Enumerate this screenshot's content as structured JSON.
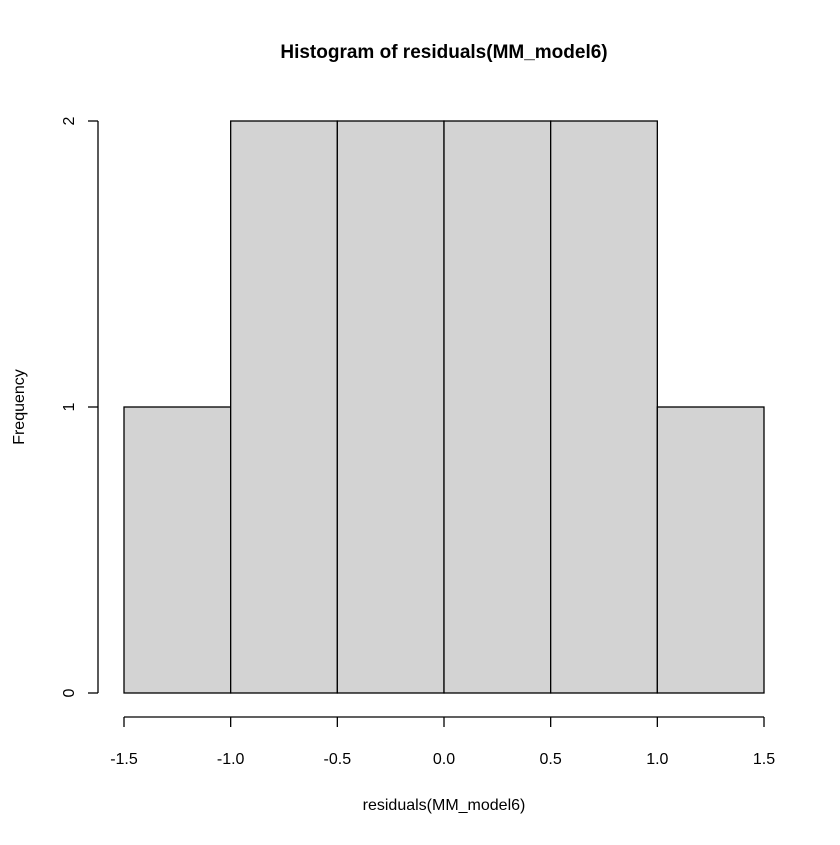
{
  "chart_data": {
    "type": "bar",
    "title": "Histogram of residuals(MM_model6)",
    "xlabel": "residuals(MM_model6)",
    "ylabel": "Frequency",
    "bins": [
      {
        "from": -1.5,
        "to": -1.0,
        "count": 1
      },
      {
        "from": -1.0,
        "to": -0.5,
        "count": 2
      },
      {
        "from": -0.5,
        "to": 0.0,
        "count": 2
      },
      {
        "from": 0.0,
        "to": 0.5,
        "count": 2
      },
      {
        "from": 0.5,
        "to": 1.0,
        "count": 2
      },
      {
        "from": 1.0,
        "to": 1.5,
        "count": 1
      }
    ],
    "xlim": [
      -1.5,
      1.5
    ],
    "ylim": [
      0,
      2
    ],
    "x_ticks": [
      -1.5,
      -1.0,
      -0.5,
      0.0,
      0.5,
      1.0,
      1.5
    ],
    "x_tick_labels": [
      "-1.5",
      "-1.0",
      "-0.5",
      "0.0",
      "0.5",
      "1.0",
      "1.5"
    ],
    "y_ticks": [
      0,
      1,
      2
    ],
    "y_tick_labels": [
      "0",
      "1",
      "2"
    ],
    "bar_color": "#d3d3d3",
    "grid": false
  }
}
